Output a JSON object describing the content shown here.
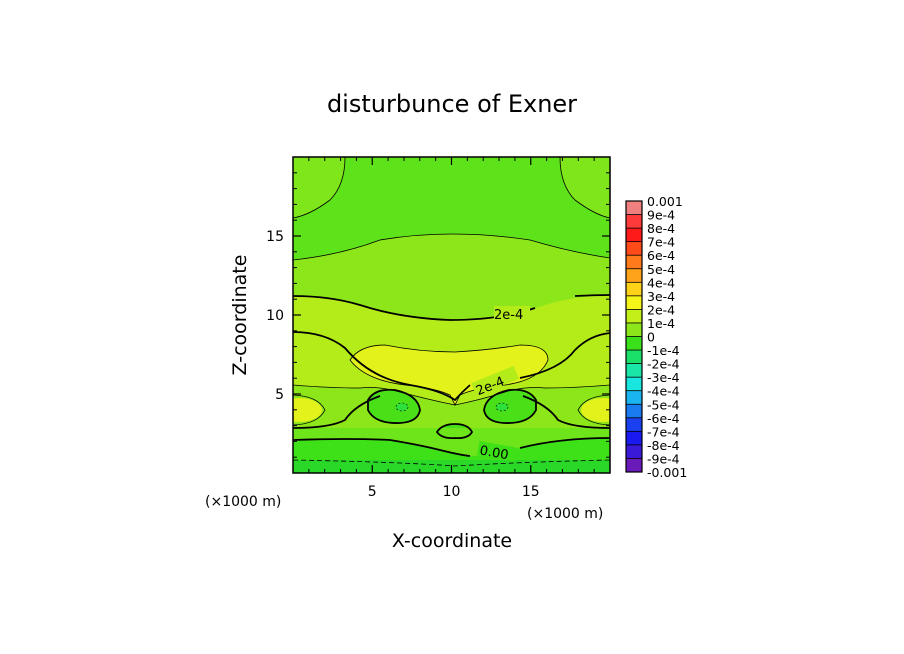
{
  "chart_data": {
    "type": "heatmap",
    "title": "disturbunce of Exner",
    "xlabel": "X-coordinate",
    "ylabel": "Z-coordinate",
    "x_unit": "(×1000 m)",
    "z_unit": "(×1000 m)",
    "xlim": [
      0,
      20
    ],
    "ylim": [
      0,
      20
    ],
    "x_ticks": [
      5,
      10,
      15
    ],
    "y_ticks": [
      5,
      10,
      15
    ],
    "x_tick_labels": [
      "5",
      "10",
      "15"
    ],
    "y_tick_labels": [
      "5",
      "10",
      "15"
    ],
    "colorbar": {
      "min": -0.001,
      "max": 0.001,
      "labels": [
        "0.001",
        "9e-4",
        "8e-4",
        "7e-4",
        "6e-4",
        "5e-4",
        "4e-4",
        "3e-4",
        "2e-4",
        "1e-4",
        "0",
        "-1e-4",
        "-2e-4",
        "-3e-4",
        "-4e-4",
        "-5e-4",
        "-6e-4",
        "-7e-4",
        "-8e-4",
        "-9e-4",
        "-0.001"
      ],
      "colors": [
        "#f08080",
        "#ff3a3a",
        "#ff1a1a",
        "#ff4a1a",
        "#ff7a1a",
        "#ffa31a",
        "#ffd21a",
        "#f5f51a",
        "#c4f01a",
        "#8ce61a",
        "#3ae01a",
        "#1ae06a",
        "#1ae6a8",
        "#1ae6e0",
        "#1ab4f0",
        "#1a7af0",
        "#1a40f0",
        "#1a1af0",
        "#3a1ad8",
        "#6a1ab8"
      ]
    },
    "contour_labels": [
      "2e-4",
      "2e-4",
      "0.00"
    ],
    "regions": [
      {
        "name": "background",
        "level": "1e-4 to 2e-4"
      },
      {
        "name": "upper band",
        "level": "2e-4 to 3e-4"
      },
      {
        "name": "central maximum",
        "center": [
          10,
          6.5
        ],
        "level": "3e-4 to 4e-4"
      },
      {
        "name": "left minimum",
        "center": [
          6.8,
          4.2
        ],
        "level": "0 to 1e-4"
      },
      {
        "name": "right minimum",
        "center": [
          13.2,
          4.2
        ],
        "level": "0 to 1e-4"
      },
      {
        "name": "left edge maximum",
        "center": [
          0.5,
          3.9
        ],
        "level": "3e-4 to 4e-4"
      },
      {
        "name": "right edge maximum",
        "center": [
          19.5,
          3.9
        ],
        "level": "3e-4 to 4e-4"
      },
      {
        "name": "near-ground layer",
        "level": "0 to 1e-4"
      }
    ]
  }
}
